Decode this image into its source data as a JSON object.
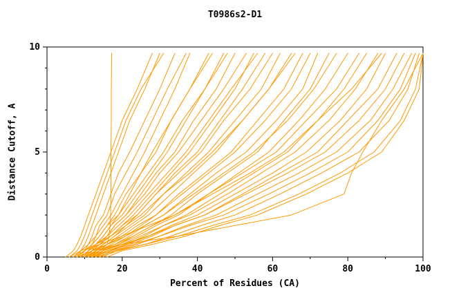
{
  "chart_data": {
    "type": "line",
    "title": "T0986s2-D1",
    "xlabel": "Percent of Residues (CA)",
    "ylabel": "Distance Cutoff, A",
    "xlim": [
      0,
      100
    ],
    "ylim": [
      0,
      10
    ],
    "x_ticks": [
      0,
      20,
      40,
      60,
      80,
      100
    ],
    "y_ticks": [
      0,
      5,
      10
    ],
    "x_minor_step": 10,
    "y_minor_step": 1,
    "grid": false,
    "legend": "none",
    "line_color": "#FF9900",
    "y_levels": [
      0,
      0.3,
      0.6,
      1,
      1.5,
      2,
      3,
      4,
      5,
      6.5,
      8,
      9.7
    ],
    "series": [
      {
        "x": [
          11,
          14,
          16,
          16.5,
          16.8,
          16.9,
          17,
          17,
          17,
          17.1,
          17.1,
          17.2
        ]
      },
      {
        "x": [
          5,
          7,
          8,
          9,
          10,
          11,
          13,
          15,
          17,
          20,
          24,
          28
        ]
      },
      {
        "x": [
          7,
          9,
          10,
          11,
          12,
          13,
          15,
          17,
          19,
          22,
          26,
          30
        ]
      },
      {
        "x": [
          6,
          8,
          9,
          10,
          11,
          12,
          14,
          16,
          18,
          21,
          25,
          31
        ]
      },
      {
        "x": [
          8,
          10,
          11,
          12,
          13,
          15,
          17,
          19,
          22,
          26,
          30,
          34
        ]
      },
      {
        "x": [
          9,
          10,
          12,
          13,
          14,
          16,
          18,
          21,
          24,
          28,
          32,
          37
        ]
      },
      {
        "x": [
          8,
          9,
          11,
          13,
          15,
          17,
          20,
          23,
          26,
          30,
          34,
          38
        ]
      },
      {
        "x": [
          10,
          12,
          13,
          15,
          17,
          19,
          22,
          25,
          29,
          33,
          38,
          43
        ]
      },
      {
        "x": [
          9,
          11,
          12,
          14,
          16,
          18,
          21,
          25,
          28,
          33,
          38,
          44
        ]
      },
      {
        "x": [
          10,
          11,
          13,
          15,
          17,
          20,
          24,
          28,
          32,
          37,
          42,
          47
        ]
      },
      {
        "x": [
          8,
          10,
          12,
          14,
          16,
          19,
          23,
          27,
          31,
          36,
          42,
          48
        ]
      },
      {
        "x": [
          11,
          12,
          14,
          16,
          18,
          21,
          25,
          29,
          34,
          39,
          45,
          50
        ]
      },
      {
        "x": [
          9,
          11,
          13,
          16,
          18,
          21,
          26,
          30,
          35,
          41,
          47,
          53
        ]
      },
      {
        "x": [
          10,
          12,
          14,
          17,
          20,
          23,
          28,
          33,
          38,
          44,
          50,
          55
        ]
      },
      {
        "x": [
          7,
          10,
          13,
          16,
          19,
          22,
          27,
          32,
          37,
          43,
          49,
          56
        ]
      },
      {
        "x": [
          12,
          13,
          15,
          18,
          21,
          24,
          29,
          34,
          40,
          46,
          52,
          58
        ]
      },
      {
        "x": [
          9,
          11,
          14,
          17,
          20,
          24,
          29,
          35,
          41,
          47,
          54,
          60
        ]
      },
      {
        "x": [
          10,
          12,
          15,
          18,
          22,
          26,
          31,
          37,
          43,
          50,
          57,
          62
        ]
      },
      {
        "x": [
          11,
          13,
          16,
          19,
          23,
          27,
          33,
          39,
          45,
          52,
          59,
          65
        ]
      },
      {
        "x": [
          8,
          10,
          13,
          17,
          21,
          25,
          31,
          38,
          44,
          52,
          59,
          66
        ]
      },
      {
        "x": [
          12,
          14,
          17,
          21,
          25,
          29,
          35,
          42,
          49,
          56,
          63,
          68
        ]
      },
      {
        "x": [
          10,
          13,
          16,
          20,
          24,
          29,
          36,
          43,
          50,
          58,
          65,
          70
        ]
      },
      {
        "x": [
          11,
          14,
          18,
          22,
          26,
          31,
          38,
          45,
          53,
          61,
          68,
          72
        ]
      },
      {
        "x": [
          13,
          15,
          19,
          23,
          28,
          33,
          40,
          48,
          56,
          63,
          70,
          75
        ]
      },
      {
        "x": [
          9,
          12,
          16,
          21,
          26,
          31,
          39,
          47,
          55,
          64,
          71,
          77
        ]
      },
      {
        "x": [
          12,
          15,
          19,
          24,
          29,
          35,
          43,
          51,
          59,
          67,
          74,
          80
        ]
      },
      {
        "x": [
          10,
          13,
          18,
          23,
          28,
          34,
          43,
          52,
          61,
          69,
          77,
          83
        ]
      },
      {
        "x": [
          14,
          17,
          21,
          26,
          31,
          37,
          46,
          55,
          64,
          72,
          79,
          85
        ]
      },
      {
        "x": [
          11,
          15,
          20,
          25,
          31,
          38,
          48,
          57,
          66,
          75,
          82,
          88
        ]
      },
      {
        "x": [
          13,
          16,
          21,
          27,
          33,
          40,
          50,
          60,
          69,
          78,
          85,
          90
        ]
      },
      {
        "x": [
          6,
          9,
          14,
          20,
          27,
          34,
          44,
          54,
          63,
          72,
          81,
          89
        ]
      },
      {
        "x": [
          12,
          16,
          22,
          28,
          34,
          42,
          52,
          62,
          72,
          80,
          88,
          93
        ]
      },
      {
        "x": [
          10,
          14,
          20,
          27,
          34,
          42,
          53,
          64,
          74,
          83,
          90,
          95
        ]
      },
      {
        "x": [
          15,
          18,
          24,
          30,
          37,
          45,
          56,
          67,
          77,
          86,
          92,
          97
        ]
      },
      {
        "x": [
          12,
          17,
          23,
          30,
          38,
          47,
          59,
          70,
          80,
          88,
          94,
          98
        ]
      },
      {
        "x": [
          14,
          19,
          26,
          33,
          41,
          50,
          62,
          73,
          83,
          91,
          96,
          99
        ]
      },
      {
        "x": [
          13,
          18,
          26,
          35,
          44,
          54,
          67,
          78,
          87,
          94,
          98,
          100
        ]
      },
      {
        "x": [
          16,
          20,
          28,
          37,
          46,
          56,
          69,
          80,
          89,
          95,
          99,
          100
        ]
      },
      {
        "x": [
          8,
          12,
          20,
          35,
          50,
          65,
          79,
          81,
          84,
          89,
          95,
          100
        ]
      }
    ]
  }
}
